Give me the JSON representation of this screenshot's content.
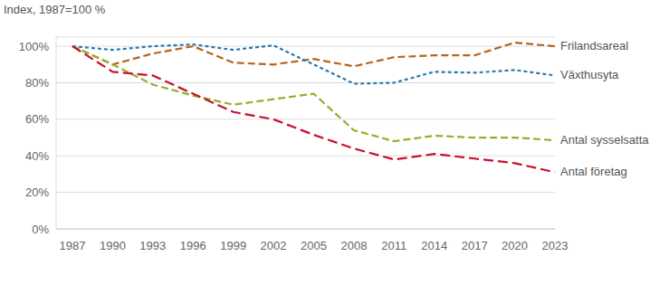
{
  "chart_data": {
    "type": "line",
    "y_label": "Index, 1987=100 %",
    "categories": [
      "1987",
      "1990",
      "1993",
      "1996",
      "1999",
      "2002",
      "2005",
      "2008",
      "2011",
      "2014",
      "2017",
      "2020",
      "2023"
    ],
    "ylim": [
      0,
      105
    ],
    "yticks": [
      {
        "value": 0,
        "label": "0%"
      },
      {
        "value": 20,
        "label": "20%"
      },
      {
        "value": 40,
        "label": "40%"
      },
      {
        "value": 60,
        "label": "60%"
      },
      {
        "value": 80,
        "label": "80%"
      },
      {
        "value": 100,
        "label": "100%"
      }
    ],
    "grid": true,
    "series": [
      {
        "name": "Frilandsareal",
        "color": "#b5651d",
        "line_style": "dashed",
        "values": [
          100,
          90,
          96,
          100,
          91,
          90,
          93,
          89,
          94,
          95,
          95,
          102,
          100
        ]
      },
      {
        "name": "Växthusyta",
        "color": "#2a7ab0",
        "line_style": "dotted",
        "values": [
          100,
          98,
          100,
          101,
          98,
          100.5,
          90,
          79.5,
          80,
          86,
          85.5,
          87,
          84
        ]
      },
      {
        "name": "Antal sysselsatta",
        "color": "#8db32b",
        "line_style": "dashed",
        "values": [
          100,
          90,
          79,
          73,
          68,
          71,
          74,
          54,
          48,
          51,
          50,
          50,
          48.5
        ]
      },
      {
        "name": "Antal företag",
        "color": "#c8102e",
        "line_style": "longdash",
        "values": [
          100,
          86,
          84,
          74,
          64,
          60,
          51.5,
          44,
          38,
          41,
          38.5,
          36,
          31
        ]
      }
    ]
  }
}
